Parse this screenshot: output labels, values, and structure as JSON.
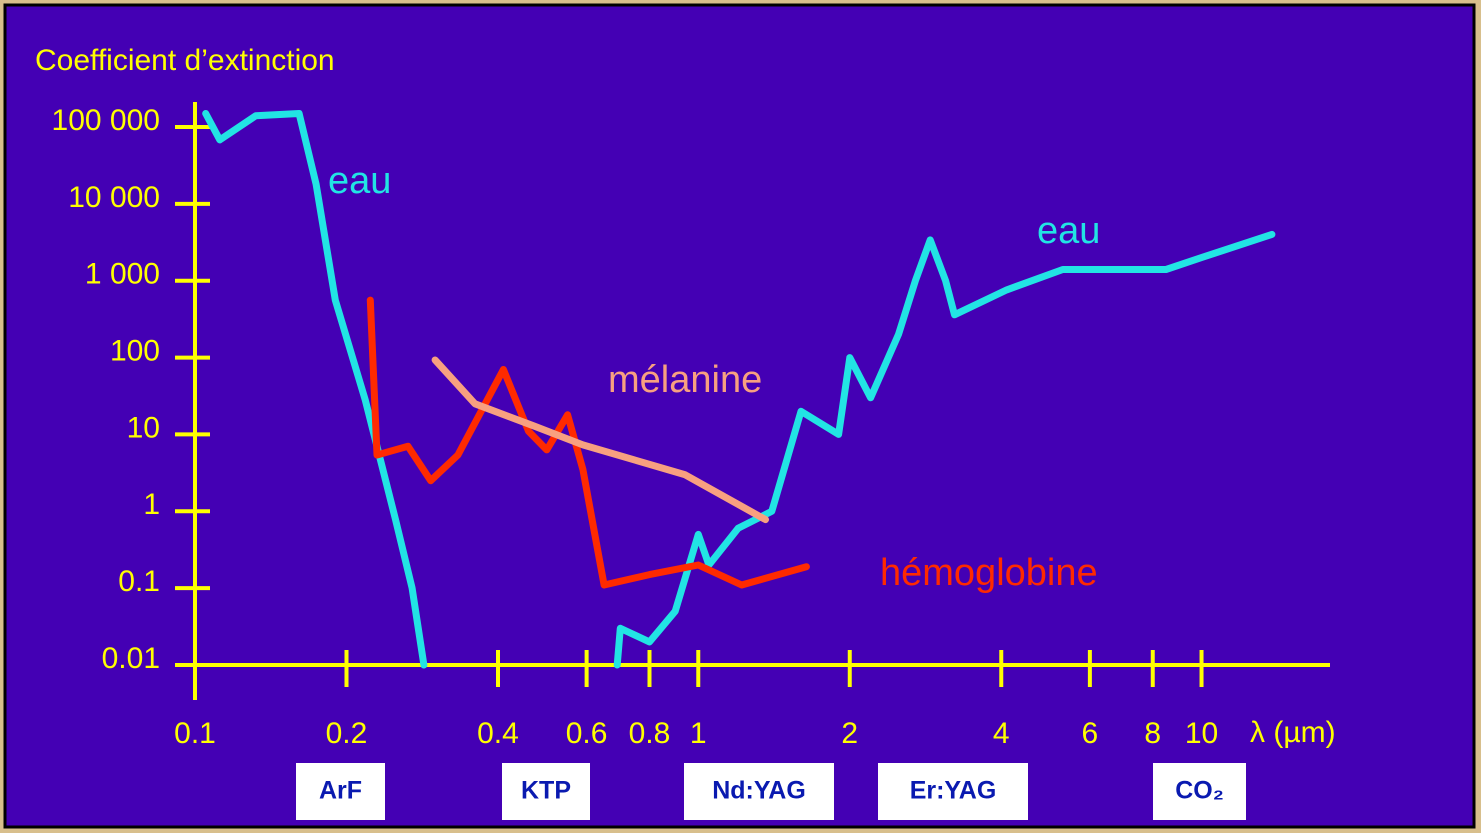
{
  "chart_data": {
    "type": "line",
    "y_label": "Coefficient d’extinction",
    "x_label": "λ (µm)",
    "log_x": true,
    "log_y": true,
    "xlim": [
      0.1,
      18
    ],
    "ylim": [
      0.01,
      100000
    ],
    "xticks": [
      0.1,
      0.2,
      0.4,
      0.6,
      0.8,
      1,
      2,
      4,
      6,
      8,
      10
    ],
    "yticks": [
      0.01,
      0.1,
      1,
      10,
      100,
      {
        "value": 1000,
        "label": "1 000"
      },
      {
        "value": 10000,
        "label": "10 000"
      },
      {
        "value": 100000,
        "label": "100 000"
      }
    ],
    "series": [
      {
        "name": "eau",
        "color": "#22e4e4",
        "x": [
          0.105,
          0.112,
          0.132,
          0.161,
          0.174,
          0.19,
          0.218,
          0.25,
          0.27,
          0.285,
          null,
          0.69,
          0.7,
          0.8,
          0.9,
          1,
          1.05,
          1.2,
          1.4,
          1.6,
          1.9,
          2.0,
          2.2,
          2.5,
          2.7,
          2.89,
          3.1,
          3.23,
          4.1,
          5.3,
          8.5,
          10,
          13.8
        ],
        "values": [
          150000,
          68000,
          140000,
          150000,
          18000,
          560,
          28,
          0.8,
          0.1,
          0.01,
          null,
          0.01,
          0.03,
          0.02,
          0.05,
          0.5,
          0.2,
          0.6,
          1,
          20,
          10,
          100,
          30,
          200,
          1000,
          3400,
          1000,
          360,
          760,
          1400,
          1400,
          2000,
          4000
        ]
      },
      {
        "name": "hémoglobine",
        "color": "#ff2a00",
        "x": [
          0.223,
          0.23,
          0.265,
          0.294,
          0.333,
          0.41,
          0.46,
          0.5,
          0.55,
          0.59,
          0.65,
          0.8,
          1,
          1.22,
          1.64
        ],
        "values": [
          560,
          5.4,
          7,
          2.5,
          5.4,
          70,
          11,
          6.3,
          18,
          3.5,
          0.11,
          0.15,
          0.2,
          0.11,
          0.19
        ]
      },
      {
        "name": "mélanine",
        "color": "#f8a080",
        "x": [
          0.3,
          0.36,
          0.47,
          0.59,
          0.94,
          1.36
        ],
        "values": [
          93,
          25,
          13,
          7.3,
          3,
          0.78
        ]
      }
    ],
    "annotations": [
      "eau"
    ],
    "lasers": [
      "ArF",
      "KTP",
      "Nd:YAG",
      "Er:YAG",
      "CO₂"
    ]
  }
}
